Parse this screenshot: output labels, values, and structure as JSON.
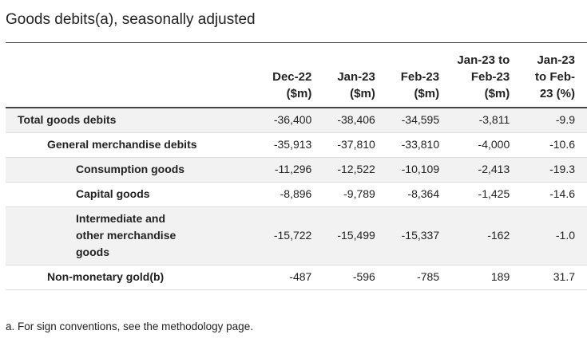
{
  "title": "Goods debits(a), seasonally adjusted",
  "table": {
    "headers": [
      "",
      "Dec-22 ($m)",
      "Jan-23 ($m)",
      "Feb-23 ($m)",
      "Jan-23 to Feb-23 ($m)",
      "Jan-23 to Feb-23 (%)"
    ],
    "header_lines": [
      [],
      [
        "Dec-22",
        "($m)"
      ],
      [
        "Jan-23",
        "($m)"
      ],
      [
        "Feb-23",
        "($m)"
      ],
      [
        "Jan-23 to",
        "Feb-23",
        "($m)"
      ],
      [
        "Jan-23",
        "to Feb-",
        "23 (%)"
      ]
    ],
    "rows": [
      {
        "label": "Total goods debits",
        "level": 0,
        "values": [
          "-36,400",
          "-38,406",
          "-34,595",
          "-3,811",
          "-9.9"
        ]
      },
      {
        "label": "General merchandise debits",
        "level": 1,
        "values": [
          "-35,913",
          "-37,810",
          "-33,810",
          "-4,000",
          "-10.6"
        ]
      },
      {
        "label": "Consumption goods",
        "level": 2,
        "values": [
          "-11,296",
          "-12,522",
          "-10,109",
          "-2,413",
          "-19.3"
        ]
      },
      {
        "label": "Capital goods",
        "level": 2,
        "values": [
          "-8,896",
          "-9,789",
          "-8,364",
          "-1,425",
          "-14.6"
        ]
      },
      {
        "label": "Intermediate and other merchandise goods",
        "level": 2,
        "values": [
          "-15,722",
          "-15,499",
          "-15,337",
          "-162",
          "-1.0"
        ]
      },
      {
        "label": "Non-monetary gold(b)",
        "level": 1,
        "values": [
          "-487",
          "-596",
          "-785",
          "189",
          "31.7"
        ]
      }
    ]
  },
  "footnote": "a. For sign conventions, see the methodology page."
}
